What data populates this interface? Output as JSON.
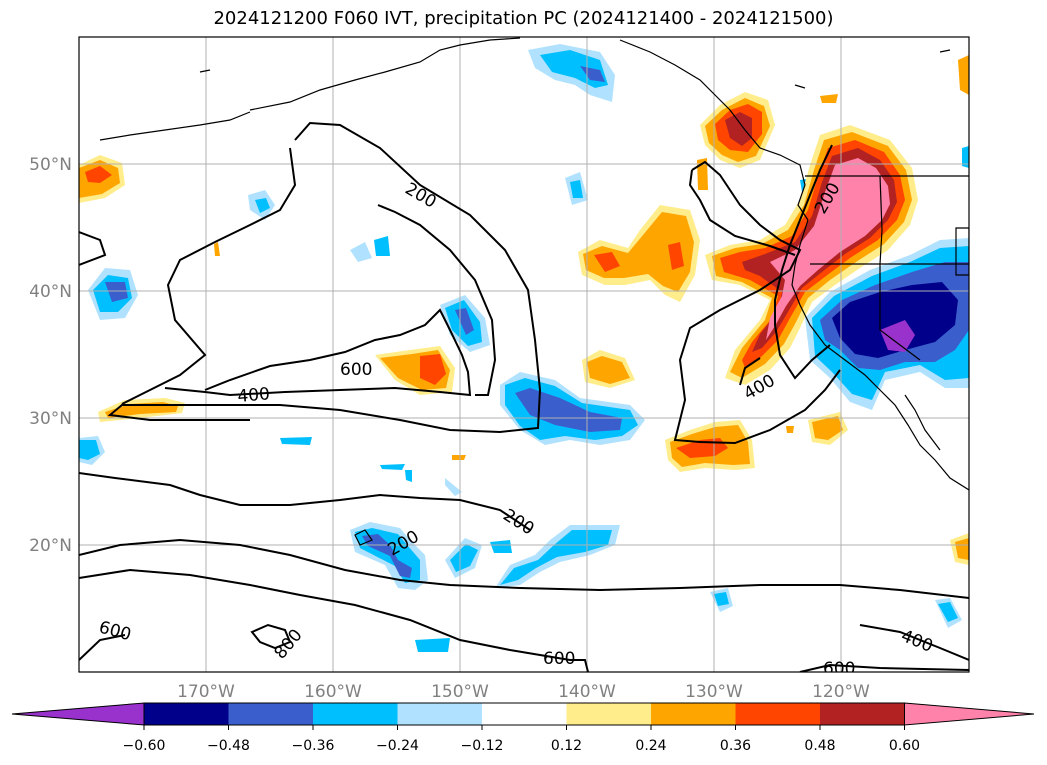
{
  "title": "2024121200 F060 IVT, precipitation PC (2024121400 - 2024121500)",
  "map": {
    "lon_range": [
      -180,
      -110
    ],
    "lat_range": [
      10,
      60
    ],
    "lat_labels": [
      "20°N",
      "30°N",
      "40°N",
      "50°N"
    ],
    "lon_labels": [
      "170°W",
      "160°W",
      "150°W",
      "140°W",
      "130°W",
      "120°W"
    ],
    "contour_labels": [
      "200",
      "200",
      "200",
      "200",
      "400",
      "400",
      "400",
      "600",
      "600",
      "600",
      "600",
      "800"
    ]
  },
  "colorbar": {
    "tick_labels": [
      "−0.60",
      "−0.48",
      "−0.36",
      "−0.24",
      "−0.12",
      "0.12",
      "0.24",
      "0.36",
      "0.48",
      "0.60"
    ],
    "colors": [
      "#9932cc",
      "#00008b",
      "#3a5fcd",
      "#00bfff",
      "#b0e2ff",
      "#ffffff",
      "#ffec8b",
      "#ffa500",
      "#ff4500",
      "#b22222",
      "#ff82ab"
    ]
  }
}
